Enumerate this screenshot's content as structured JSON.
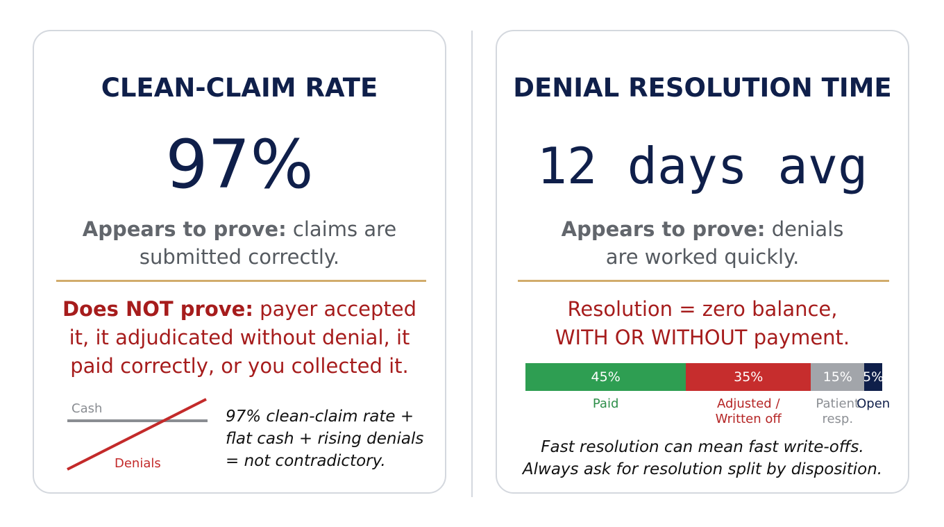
{
  "left_card": {
    "title": "CLEAN-CLAIM RATE",
    "kpi": "97%",
    "appears_lead": "Appears to prove:",
    "appears_line1_rest": "claims are",
    "appears_line2": "submitted correctly.",
    "not_lead": "Does NOT prove:",
    "not_line1_rest": "payer accepted",
    "not_line2": "it, it adjudicated without denial, it",
    "not_line3": "paid correctly, or you collected it.",
    "mini_chart": {
      "cash_label": "Cash",
      "denials_label": "Denials",
      "cash_color": "#8a8d92",
      "denials_color": "#c32a2a",
      "cash_trend": "flat",
      "denials_trend": "rising"
    },
    "note_line1": "97% clean-claim rate +",
    "note_line2": "flat cash + rising denials",
    "note_line3": "= not contradictory."
  },
  "right_card": {
    "title": "DENIAL RESOLUTION TIME",
    "kpi": "12 days avg",
    "appears_lead": "Appears to prove:",
    "appears_line1_rest": "denials",
    "appears_line2": "are worked quickly.",
    "def_line1": "Resolution = zero balance,",
    "def_line2": "WITH OR WITHOUT payment.",
    "split": [
      {
        "pct": 45,
        "value_label": "45%",
        "label_line1": "Paid",
        "label_line2": "",
        "color": "#2e9e52",
        "label_color": "#2e8f4a"
      },
      {
        "pct": 35,
        "value_label": "35%",
        "label_line1": "Adjusted /",
        "label_line2": "Written off",
        "color": "#c62d2d",
        "label_color": "#b52525"
      },
      {
        "pct": 15,
        "value_label": "15%",
        "label_line1": "Patient",
        "label_line2": "resp.",
        "color": "#a2a5aa",
        "label_color": "#8c8f94"
      },
      {
        "pct": 5,
        "value_label": "5%",
        "label_line1": "Open",
        "label_line2": "",
        "color": "#0f1f4a",
        "label_color": "#0f1f4a"
      }
    ],
    "footer_line1": "Fast resolution can mean fast write-offs.",
    "footer_line2": "Always ask for resolution split by disposition."
  },
  "colors": {
    "navy": "#0f1f4a",
    "red": "#a61c1c",
    "gold": "#d1ac6c",
    "gray_text": "#555a60"
  }
}
